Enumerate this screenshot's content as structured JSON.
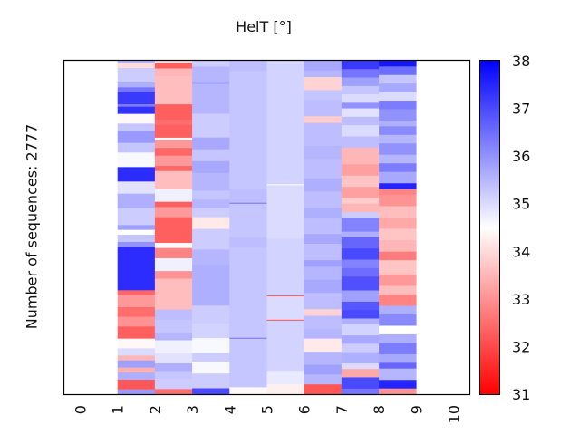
{
  "chart_data": {
    "type": "heatmap",
    "title": "HelT [°]",
    "ylabel": "Number of sequences: 2777",
    "xlabel": "",
    "x_ticks": [
      "0",
      "1",
      "2",
      "3",
      "4",
      "5",
      "6",
      "7",
      "8",
      "9",
      "10"
    ],
    "xlim": [
      0,
      10
    ],
    "colorbar": {
      "min": 31,
      "max": 38,
      "ticks": [
        "31",
        "32",
        "33",
        "34",
        "35",
        "36",
        "37",
        "38"
      ],
      "colormap": [
        "#ff0000",
        "#ffffff",
        "#0000ff"
      ]
    },
    "columns": [
      {
        "position": 1,
        "segments": [
          [
            0.01,
            35.5
          ],
          [
            0.02,
            34
          ],
          [
            0.06,
            35.2
          ],
          [
            0.02,
            35.6
          ],
          [
            0.02,
            36.4
          ],
          [
            0.05,
            37.2
          ],
          [
            0.01,
            36.3
          ],
          [
            0.03,
            37.3
          ],
          [
            0.04,
            34.4
          ],
          [
            0.03,
            35.3
          ],
          [
            0.05,
            35.9
          ],
          [
            0.04,
            35.3
          ],
          [
            0.06,
            34.6
          ],
          [
            0.06,
            37.4
          ],
          [
            0.05,
            34.9
          ],
          [
            0.06,
            35.6
          ],
          [
            0.07,
            35.2
          ],
          [
            0.02,
            35.8
          ],
          [
            0.02,
            34.5
          ],
          [
            0.03,
            35.3
          ],
          [
            0.02,
            36
          ],
          [
            0.18,
            37.4
          ],
          [
            0.02,
            32.4
          ],
          [
            0.05,
            33.1
          ],
          [
            0.04,
            32.5
          ],
          [
            0.04,
            33
          ],
          [
            0.05,
            32.3
          ],
          [
            0.04,
            34.4
          ],
          [
            0.03,
            35
          ],
          [
            0.02,
            33.5
          ],
          [
            0.03,
            35.8
          ],
          [
            0.02,
            33.4
          ],
          [
            0.03,
            35.6
          ],
          [
            0.04,
            32.2
          ],
          [
            0.02,
            35.9
          ]
        ]
      },
      {
        "position": 2,
        "segments": [
          [
            0.01,
            34
          ],
          [
            0.02,
            32.3
          ],
          [
            0.03,
            33.5
          ],
          [
            0.04,
            33.6
          ],
          [
            0.04,
            33.6
          ],
          [
            0.03,
            33.6
          ],
          [
            0.06,
            32.3
          ],
          [
            0.02,
            32.5
          ],
          [
            0.05,
            32.3
          ],
          [
            0.01,
            34.4
          ],
          [
            0.03,
            33.1
          ],
          [
            0.03,
            32.4
          ],
          [
            0.04,
            33.1
          ],
          [
            0.02,
            32.4
          ],
          [
            0.07,
            33.6
          ],
          [
            0.05,
            34.7
          ],
          [
            0.02,
            32.3
          ],
          [
            0.04,
            33.1
          ],
          [
            0.03,
            32.3
          ],
          [
            0.07,
            32.3
          ],
          [
            0.02,
            34.4
          ],
          [
            0.04,
            32.8
          ],
          [
            0.05,
            34.7
          ],
          [
            0.03,
            33.0
          ],
          [
            0.12,
            33.6
          ],
          [
            0.04,
            35.4
          ],
          [
            0.05,
            35.3
          ],
          [
            0.03,
            35.5
          ],
          [
            0.05,
            34.7
          ],
          [
            0.04,
            34.9
          ],
          [
            0.03,
            35.6
          ],
          [
            0.03,
            35.3
          ],
          [
            0.04,
            35.2
          ],
          [
            0.02,
            32.5
          ]
        ]
      },
      {
        "position": 3,
        "segments": [
          [
            0.02,
            35.2
          ],
          [
            0.05,
            35.5
          ],
          [
            0.01,
            35.7
          ],
          [
            0.07,
            35.5
          ],
          [
            0.03,
            35.5
          ],
          [
            0.08,
            35.2
          ],
          [
            0.04,
            35.7
          ],
          [
            0.04,
            35.3
          ],
          [
            0.04,
            35.7
          ],
          [
            0.06,
            35.5
          ],
          [
            0.03,
            35.3
          ],
          [
            0.03,
            35.5
          ],
          [
            0.03,
            35.2
          ],
          [
            0.04,
            34.2
          ],
          [
            0.07,
            35.2
          ],
          [
            0.05,
            35.5
          ],
          [
            0.14,
            35.6
          ],
          [
            0.06,
            35.2
          ],
          [
            0.05,
            35.1
          ],
          [
            0.05,
            34.6
          ],
          [
            0.03,
            35.2
          ],
          [
            0.04,
            34.6
          ],
          [
            0.05,
            35.2
          ],
          [
            0.02,
            37
          ]
        ]
      },
      {
        "position": 4,
        "segments": [
          [
            0.03,
            35.4
          ],
          [
            0.34,
            35.3
          ],
          [
            0.04,
            35.4
          ],
          [
            0.003,
            36.3
          ],
          [
            0.097,
            35.3
          ],
          [
            0.03,
            35.4
          ],
          [
            0.04,
            35.3
          ],
          [
            0.22,
            35.3
          ],
          [
            0.003,
            36.3
          ],
          [
            0.14,
            35.3
          ],
          [
            0.02,
            34.4
          ]
        ]
      },
      {
        "position": 5,
        "segments": [
          [
            0.37,
            35.1
          ],
          [
            0.003,
            34.5
          ],
          [
            0.16,
            35.0
          ],
          [
            0.07,
            35.1
          ],
          [
            0.1,
            35.1
          ],
          [
            0.003,
            32.3
          ],
          [
            0.07,
            35.0
          ],
          [
            0.003,
            32.3
          ],
          [
            0.15,
            35.1
          ],
          [
            0.04,
            34.8
          ],
          [
            0.03,
            34.3
          ]
        ]
      },
      {
        "position": 6,
        "segments": [
          [
            0.03,
            35.7
          ],
          [
            0.02,
            35.5
          ],
          [
            0.04,
            33.9
          ],
          [
            0.03,
            35.3
          ],
          [
            0.05,
            35.4
          ],
          [
            0.02,
            33.8
          ],
          [
            0.07,
            35.4
          ],
          [
            0.04,
            35.5
          ],
          [
            0.06,
            35.4
          ],
          [
            0.04,
            35.6
          ],
          [
            0.05,
            35.4
          ],
          [
            0.03,
            35.6
          ],
          [
            0.05,
            35.4
          ],
          [
            0.03,
            35.7
          ],
          [
            0.05,
            35.4
          ],
          [
            0.02,
            35.8
          ],
          [
            0.04,
            35.5
          ],
          [
            0.04,
            35.7
          ],
          [
            0.05,
            35.4
          ],
          [
            0.02,
            33.9
          ],
          [
            0.04,
            35.4
          ],
          [
            0.03,
            35.5
          ],
          [
            0.04,
            34.2
          ],
          [
            0.04,
            35.5
          ],
          [
            0.03,
            35.8
          ],
          [
            0.03,
            35.5
          ],
          [
            0.03,
            32.2
          ]
        ]
      },
      {
        "position": 7,
        "segments": [
          [
            0.03,
            37.2
          ],
          [
            0.03,
            36.4
          ],
          [
            0.03,
            35.8
          ],
          [
            0.03,
            35.3
          ],
          [
            0.03,
            35.0
          ],
          [
            0.02,
            36.0
          ],
          [
            0.03,
            34.9
          ],
          [
            0.03,
            35.4
          ],
          [
            0.04,
            35.0
          ],
          [
            0.04,
            35.4
          ],
          [
            0.06,
            33.5
          ],
          [
            0.04,
            33.2
          ],
          [
            0.04,
            33.7
          ],
          [
            0.04,
            33.2
          ],
          [
            0.02,
            33.8
          ],
          [
            0.03,
            33.5
          ],
          [
            0.02,
            35.2
          ],
          [
            0.05,
            36.2
          ],
          [
            0.02,
            35.6
          ],
          [
            0.04,
            36.6
          ],
          [
            0.04,
            37.0
          ],
          [
            0.03,
            36.2
          ],
          [
            0.03,
            36.5
          ],
          [
            0.05,
            36.9
          ],
          [
            0.04,
            35.8
          ],
          [
            0.03,
            36.8
          ],
          [
            0.03,
            37.0
          ],
          [
            0.02,
            35.6
          ],
          [
            0.04,
            35.1
          ],
          [
            0.03,
            35.7
          ],
          [
            0.03,
            35.2
          ],
          [
            0.04,
            35.6
          ],
          [
            0.02,
            35.0
          ],
          [
            0.03,
            33.3
          ],
          [
            0.04,
            37.0
          ],
          [
            0.02,
            36.4
          ]
        ]
      },
      {
        "position": 8,
        "segments": [
          [
            0.02,
            37.7
          ],
          [
            0.03,
            36.5
          ],
          [
            0.03,
            35.3
          ],
          [
            0.03,
            35.7
          ],
          [
            0.03,
            35.0
          ],
          [
            0.03,
            36.3
          ],
          [
            0.04,
            36.0
          ],
          [
            0.02,
            35.6
          ],
          [
            0.03,
            36.1
          ],
          [
            0.03,
            35.5
          ],
          [
            0.04,
            36.0
          ],
          [
            0.03,
            35.5
          ],
          [
            0.03,
            36.3
          ],
          [
            0.04,
            35.7
          ],
          [
            0.02,
            37.5
          ],
          [
            0.02,
            32.8
          ],
          [
            0.04,
            33.0
          ],
          [
            0.04,
            33.6
          ],
          [
            0.04,
            33.3
          ],
          [
            0.04,
            33.7
          ],
          [
            0.04,
            33.5
          ],
          [
            0.03,
            32.7
          ],
          [
            0.05,
            33.7
          ],
          [
            0.04,
            33.1
          ],
          [
            0.03,
            33.6
          ],
          [
            0.04,
            32.8
          ],
          [
            0.03,
            35.6
          ],
          [
            0.04,
            36.1
          ],
          [
            0.03,
            34.5
          ],
          [
            0.03,
            35.6
          ],
          [
            0.04,
            36.3
          ],
          [
            0.03,
            35.7
          ],
          [
            0.02,
            36.6
          ],
          [
            0.04,
            35.5
          ],
          [
            0.03,
            37.5
          ],
          [
            0.02,
            33.0
          ]
        ]
      }
    ]
  }
}
